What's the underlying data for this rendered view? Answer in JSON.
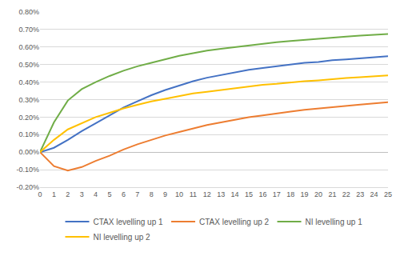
{
  "chart_data": {
    "type": "line",
    "x": [
      0,
      1,
      2,
      3,
      4,
      5,
      6,
      7,
      8,
      9,
      10,
      11,
      12,
      13,
      14,
      15,
      16,
      17,
      18,
      19,
      20,
      21,
      22,
      23,
      24,
      25
    ],
    "series": [
      {
        "name": "CTAX levelling up 1",
        "color": "#4472c4",
        "values": [
          0,
          0.025,
          0.07,
          0.12,
          0.165,
          0.21,
          0.255,
          0.29,
          0.325,
          0.355,
          0.38,
          0.405,
          0.425,
          0.44,
          0.455,
          0.47,
          0.48,
          0.49,
          0.5,
          0.51,
          0.515,
          0.525,
          0.53,
          0.535,
          0.54,
          0.548
        ]
      },
      {
        "name": "CTAX levelling up 2",
        "color": "#ed7d31",
        "values": [
          0,
          -0.08,
          -0.105,
          -0.085,
          -0.05,
          -0.02,
          0.015,
          0.045,
          0.07,
          0.095,
          0.115,
          0.135,
          0.155,
          0.17,
          0.185,
          0.2,
          0.21,
          0.222,
          0.232,
          0.242,
          0.25,
          0.258,
          0.265,
          0.272,
          0.278,
          0.285
        ]
      },
      {
        "name": "NI levelling up 1",
        "color": "#70ad47",
        "values": [
          0,
          0.17,
          0.295,
          0.36,
          0.4,
          0.435,
          0.465,
          0.49,
          0.51,
          0.53,
          0.55,
          0.565,
          0.58,
          0.59,
          0.6,
          0.61,
          0.62,
          0.628,
          0.635,
          0.642,
          0.648,
          0.655,
          0.66,
          0.665,
          0.67,
          0.675
        ]
      },
      {
        "name": "NI levelling up 2",
        "color": "#ffc000",
        "values": [
          0,
          0.07,
          0.13,
          0.165,
          0.2,
          0.225,
          0.25,
          0.27,
          0.29,
          0.305,
          0.32,
          0.335,
          0.345,
          0.355,
          0.365,
          0.375,
          0.385,
          0.39,
          0.398,
          0.405,
          0.41,
          0.418,
          0.423,
          0.428,
          0.433,
          0.438
        ]
      }
    ],
    "xlim": [
      0,
      25
    ],
    "xticks": [
      0,
      1,
      2,
      3,
      4,
      5,
      6,
      7,
      8,
      9,
      10,
      11,
      12,
      13,
      14,
      15,
      16,
      17,
      18,
      19,
      20,
      21,
      22,
      23,
      24,
      25
    ],
    "ylim": [
      -0.2,
      0.8
    ],
    "yticks": [
      {
        "value": -0.2,
        "label": "-0.20%"
      },
      {
        "value": -0.1,
        "label": "-0.10%"
      },
      {
        "value": 0,
        "label": "0.00%"
      },
      {
        "value": 0.1,
        "label": "0.10%"
      },
      {
        "value": 0.2,
        "label": "0.20%"
      },
      {
        "value": 0.3,
        "label": "0.30%"
      },
      {
        "value": 0.4,
        "label": "0.40%"
      },
      {
        "value": 0.5,
        "label": "0.50%"
      },
      {
        "value": 0.6,
        "label": "0.60%"
      },
      {
        "value": 0.7,
        "label": "0.70%"
      },
      {
        "value": 0.8,
        "label": "0.80%"
      }
    ],
    "grid": true,
    "legend": "bottom"
  }
}
